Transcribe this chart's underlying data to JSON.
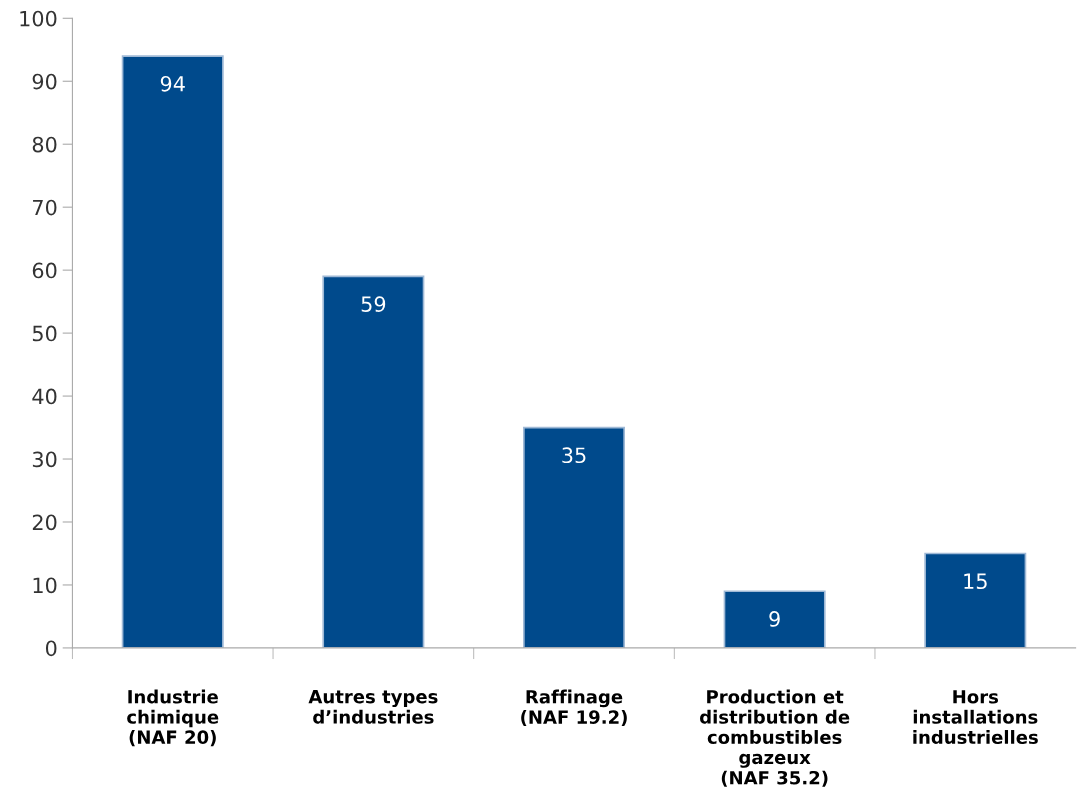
{
  "chart_data": {
    "type": "bar",
    "categories": [
      "Industrie\nchimique\n(NAF 20)",
      "Autres types\nd’industries",
      "Raffinage\n(NAF 19.2)",
      "Production et\ndistribution de\ncombustibles\ngazeux\n(NAF 35.2)",
      "Hors\ninstallations\nindustrielles"
    ],
    "values": [
      94,
      59,
      35,
      9,
      15
    ],
    "color": "#004a8c",
    "ylim": [
      0,
      100
    ],
    "yticks": [
      0,
      10,
      20,
      30,
      40,
      50,
      60,
      70,
      80,
      90,
      100
    ],
    "grid": false,
    "data_labels": true
  }
}
